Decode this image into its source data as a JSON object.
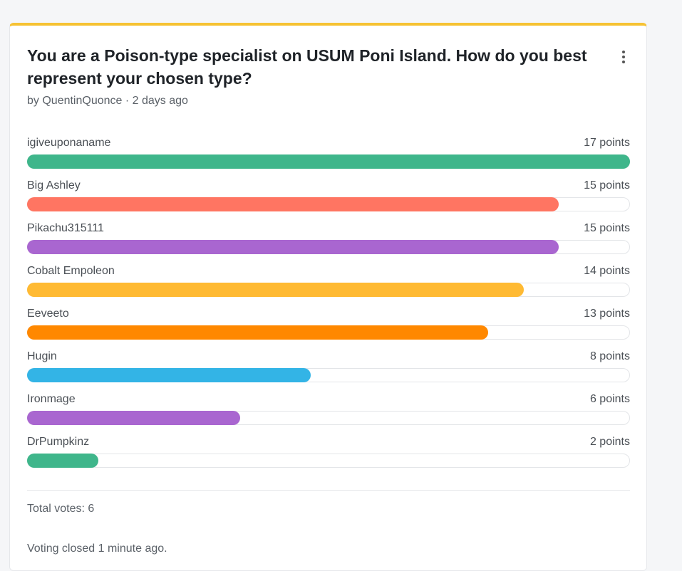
{
  "poll": {
    "title": "You are a Poison-type specialist on USUM Poni Island. How do you best represent your chosen type?",
    "meta": "by QuentinQuonce · 2 days ago",
    "options": [
      {
        "label": "igiveuponaname",
        "points": "17 points",
        "value": 17,
        "color": "#3fb68b"
      },
      {
        "label": "Big Ashley",
        "points": "15 points",
        "value": 15,
        "color": "#ff7562"
      },
      {
        "label": "Pikachu315111",
        "points": "15 points",
        "value": 15,
        "color": "#a966d0"
      },
      {
        "label": "Cobalt Empoleon",
        "points": "14 points",
        "value": 14,
        "color": "#ffba33"
      },
      {
        "label": "Eeveeto",
        "points": "13 points",
        "value": 13,
        "color": "#ff8800"
      },
      {
        "label": "Hugin",
        "points": "8 points",
        "value": 8,
        "color": "#33b4e6"
      },
      {
        "label": "Ironmage",
        "points": "6 points",
        "value": 6,
        "color": "#a966d0"
      },
      {
        "label": "DrPumpkinz",
        "points": "2 points",
        "value": 2,
        "color": "#3fb68b"
      }
    ],
    "max_points": 17,
    "total_votes": "Total votes: 6",
    "status": "Voting closed 1 minute ago.",
    "accent_color": "#f6c233"
  }
}
